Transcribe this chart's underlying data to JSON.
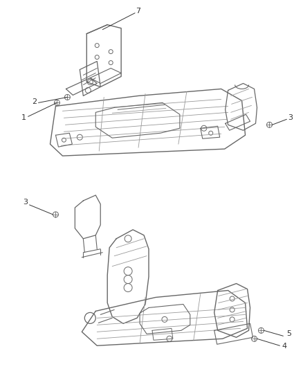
{
  "bg_color": "#ffffff",
  "lc": "#666666",
  "lc2": "#999999",
  "lc3": "#444444",
  "cc": "#333333",
  "fig_width": 4.38,
  "fig_height": 5.33,
  "dpi": 100
}
